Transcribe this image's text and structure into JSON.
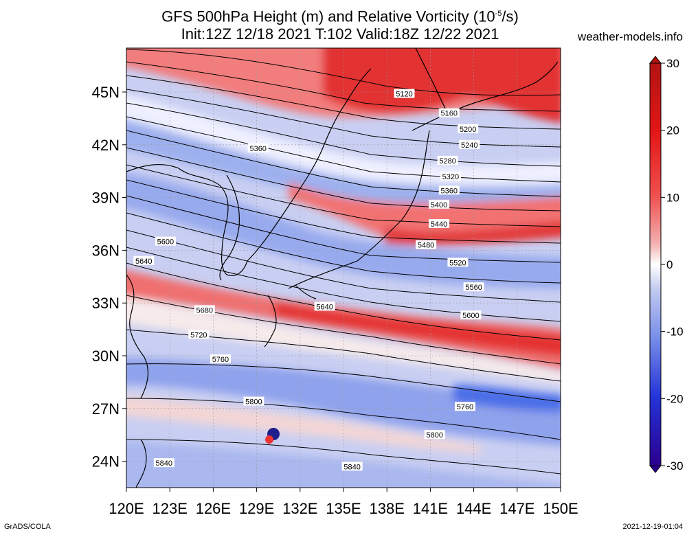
{
  "header": {
    "title_line1_pre": "GFS 500hPa Height (m) and Relative Vorticity (10",
    "title_line1_sup": "-5",
    "title_line1_post": "/s)",
    "title_line2": "Init:12Z 12/18 2021 T:102 Valid:18Z 12/22 2021",
    "site": "weather-models.info"
  },
  "footer": {
    "left": "GrADS/COLA",
    "right": "2021-12-19-01:04"
  },
  "map": {
    "lon_labels": [
      "120E",
      "123E",
      "126E",
      "129E",
      "132E",
      "135E",
      "138E",
      "141E",
      "144E",
      "147E",
      "150E"
    ],
    "lat_labels": [
      "45N",
      "42N",
      "39N",
      "36N",
      "33N",
      "30N",
      "27N",
      "24N"
    ],
    "lon_range": [
      120,
      150
    ],
    "lat_range": [
      22.5,
      47.5
    ],
    "contour_labels": [
      {
        "text": "5120",
        "lon": 139.2,
        "lat": 44.9
      },
      {
        "text": "5160",
        "lon": 142.3,
        "lat": 43.8
      },
      {
        "text": "5200",
        "lon": 143.6,
        "lat": 42.9
      },
      {
        "text": "5240",
        "lon": 143.7,
        "lat": 42.0
      },
      {
        "text": "5360",
        "lon": 129.1,
        "lat": 41.8
      },
      {
        "text": "5280",
        "lon": 142.2,
        "lat": 41.1
      },
      {
        "text": "5320",
        "lon": 142.4,
        "lat": 40.2
      },
      {
        "text": "5360",
        "lon": 142.3,
        "lat": 39.4
      },
      {
        "text": "5400",
        "lon": 141.6,
        "lat": 38.6
      },
      {
        "text": "5440",
        "lon": 141.6,
        "lat": 37.5
      },
      {
        "text": "5480",
        "lon": 140.7,
        "lat": 36.3
      },
      {
        "text": "5600",
        "lon": 122.7,
        "lat": 36.5
      },
      {
        "text": "5640",
        "lon": 121.2,
        "lat": 35.4
      },
      {
        "text": "5520",
        "lon": 142.9,
        "lat": 35.3
      },
      {
        "text": "5560",
        "lon": 144.0,
        "lat": 33.9
      },
      {
        "text": "5680",
        "lon": 125.4,
        "lat": 32.6
      },
      {
        "text": "5640",
        "lon": 133.7,
        "lat": 32.8
      },
      {
        "text": "5600",
        "lon": 143.8,
        "lat": 32.3
      },
      {
        "text": "5720",
        "lon": 125.0,
        "lat": 31.2
      },
      {
        "text": "5760",
        "lon": 126.5,
        "lat": 29.8
      },
      {
        "text": "5800",
        "lon": 128.8,
        "lat": 27.4
      },
      {
        "text": "5760",
        "lon": 143.4,
        "lat": 27.1
      },
      {
        "text": "5800",
        "lon": 141.3,
        "lat": 25.5
      },
      {
        "text": "5840",
        "lon": 122.6,
        "lat": 23.9
      },
      {
        "text": "5840",
        "lon": 135.6,
        "lat": 23.7
      }
    ]
  },
  "colorbar": {
    "ticks": [
      "30",
      "20",
      "10",
      "0",
      "-10",
      "-20",
      "-30"
    ],
    "tick_values": [
      30,
      20,
      10,
      0,
      -10,
      -20,
      -30
    ],
    "range": [
      -30,
      30
    ],
    "colors": [
      "#2b0090",
      "#1f2ad6",
      "#3f74f0",
      "#8fa6ee",
      "#c9d0f2",
      "#ffffff",
      "#f3c3c3",
      "#ec8f8f",
      "#f04a4a",
      "#e31616",
      "#b21414"
    ]
  }
}
